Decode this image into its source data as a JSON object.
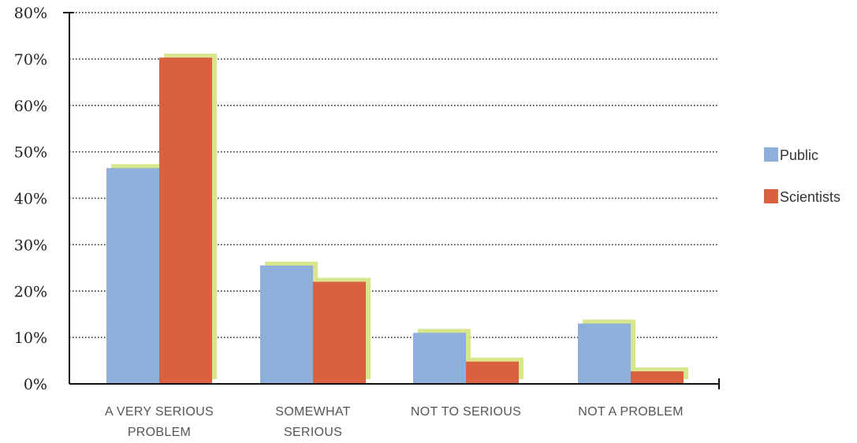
{
  "chart_data": {
    "type": "bar",
    "categories": [
      [
        "A VERY SERIOUS",
        "PROBLEM"
      ],
      [
        "SOMEWHAT",
        "SERIOUS"
      ],
      [
        "NOT TO SERIOUS"
      ],
      [
        "NOT A PROBLEM"
      ]
    ],
    "series": [
      {
        "name": "Public",
        "values": [
          46.5,
          25.5,
          11,
          13
        ],
        "color": "#8cb0db"
      },
      {
        "name": "Scientists",
        "values": [
          70.3,
          22,
          4.8,
          2.7
        ],
        "color": "#d96140"
      }
    ],
    "shadow_color": "#d9e58a",
    "ylim": [
      0,
      80
    ],
    "yticks": [
      0,
      10,
      20,
      30,
      40,
      50,
      60,
      70,
      80
    ],
    "ytick_labels": [
      "0%",
      "10%",
      "20%",
      "30%",
      "40%",
      "50%",
      "60%",
      "70%",
      "80%"
    ],
    "grid": "dotted",
    "legend_position": "right",
    "title": "",
    "xlabel": "",
    "ylabel": ""
  }
}
